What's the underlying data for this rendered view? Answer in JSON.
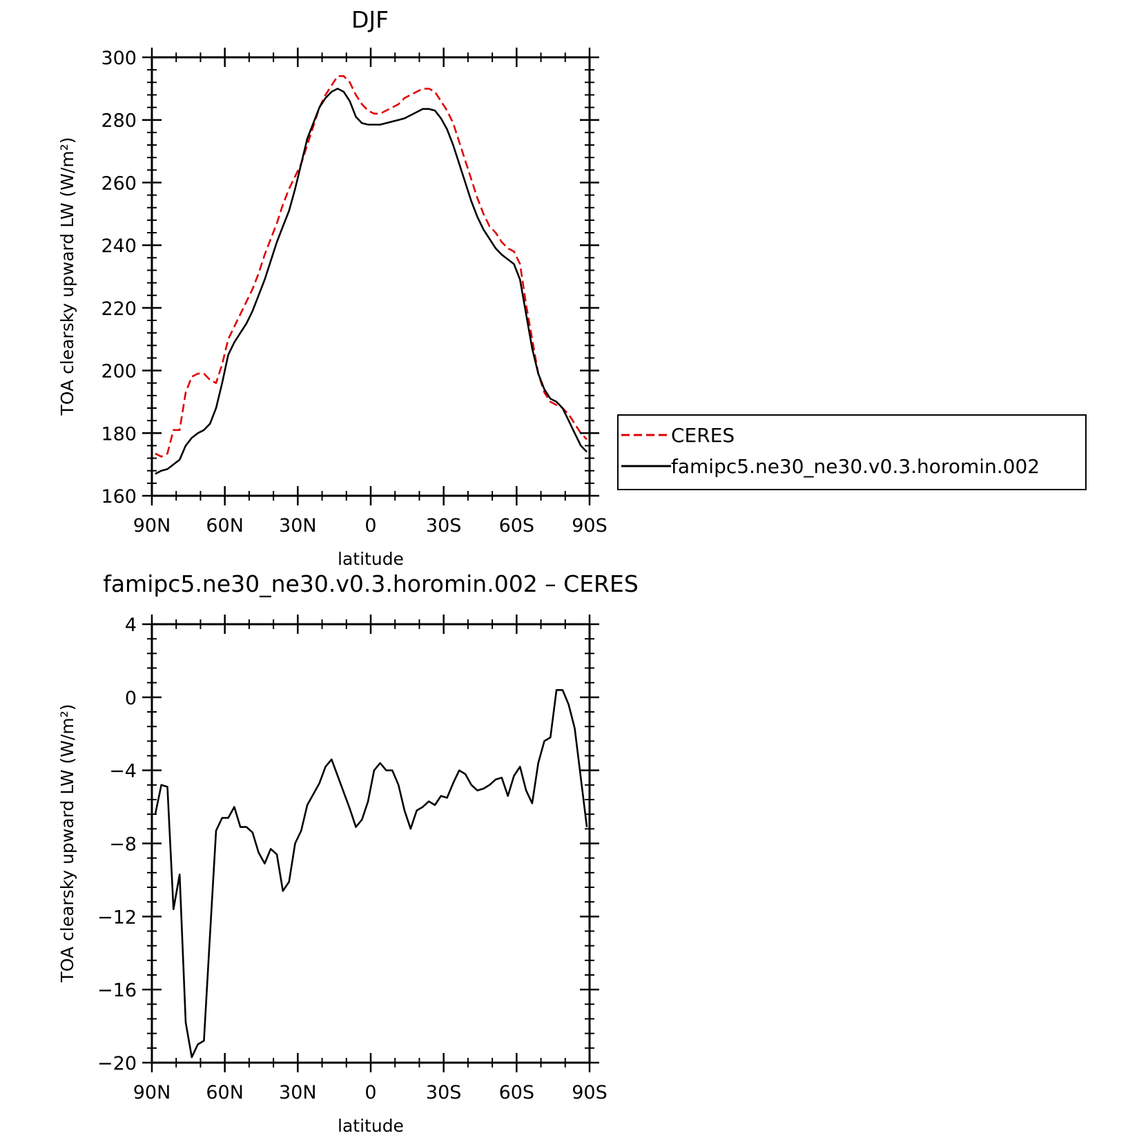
{
  "chart_data": [
    {
      "type": "line",
      "title": "DJF",
      "xlabel": "latitude",
      "ylabel": "TOA clearsky upward LW (W/m²)",
      "xlim": [
        90,
        -90
      ],
      "ylim": [
        160,
        300
      ],
      "xticks": [
        90,
        60,
        30,
        0,
        -30,
        -60,
        -90
      ],
      "xtick_labels": [
        "90N",
        "60N",
        "30N",
        "0",
        "30S",
        "60S",
        "90S"
      ],
      "yticks": [
        160,
        180,
        200,
        220,
        240,
        260,
        280,
        300
      ],
      "ytick_labels": [
        "160",
        "180",
        "200",
        "220",
        "240",
        "260",
        "280",
        "300"
      ],
      "legend_position": "right",
      "series": [
        {
          "name": "CERES",
          "color": "#e00000",
          "dash": "dashed",
          "x": [
            88.6,
            86.1,
            83.6,
            81.1,
            78.6,
            76.1,
            73.6,
            71.1,
            68.6,
            66.1,
            63.6,
            61.1,
            58.6,
            56.1,
            53.6,
            51.1,
            48.6,
            46.1,
            43.6,
            41.1,
            38.6,
            36.1,
            33.6,
            31.1,
            28.6,
            26.1,
            23.6,
            21.1,
            18.6,
            16.1,
            13.6,
            11.1,
            8.6,
            6.1,
            3.6,
            1.1,
            -1.4,
            -3.9,
            -6.4,
            -8.9,
            -11.4,
            -13.9,
            -16.4,
            -18.9,
            -21.4,
            -23.9,
            -26.4,
            -28.9,
            -31.4,
            -33.9,
            -36.4,
            -38.9,
            -41.4,
            -43.9,
            -46.4,
            -48.9,
            -51.4,
            -53.9,
            -56.4,
            -58.9,
            -61.4,
            -63.9,
            -66.4,
            -68.9,
            -71.4,
            -73.9,
            -76.4,
            -78.9,
            -81.4,
            -83.9,
            -86.4,
            -88.9
          ],
          "y": [
            173.5,
            172.5,
            173.5,
            181,
            181,
            193,
            198,
            199,
            199,
            197,
            196,
            202,
            210,
            214,
            218,
            222,
            226,
            231,
            237,
            242,
            247,
            253,
            258,
            262,
            266,
            272,
            278,
            284,
            288,
            291,
            294,
            294,
            292,
            288,
            285,
            283,
            282,
            282,
            283,
            284,
            285,
            287,
            288,
            289,
            290,
            290,
            289,
            286,
            283,
            279,
            273,
            267,
            261,
            255,
            250,
            246,
            244,
            241,
            239,
            238,
            234,
            221,
            210,
            199,
            193,
            190,
            189,
            188,
            186,
            183,
            180,
            178
          ],
          "y_note": ""
        },
        {
          "name": "famipc5.ne30_ne30.v0.3.horomin.002",
          "color": "#000000",
          "dash": "solid",
          "x": [
            88.6,
            86.1,
            83.6,
            81.1,
            78.6,
            76.1,
            73.6,
            71.1,
            68.6,
            66.1,
            63.6,
            61.1,
            58.6,
            56.1,
            53.6,
            51.1,
            48.6,
            46.1,
            43.6,
            41.1,
            38.6,
            36.1,
            33.6,
            31.1,
            28.6,
            26.1,
            23.6,
            21.1,
            18.6,
            16.1,
            13.6,
            11.1,
            8.6,
            6.1,
            3.6,
            1.1,
            -1.4,
            -3.9,
            -6.4,
            -8.9,
            -11.4,
            -13.9,
            -16.4,
            -18.9,
            -21.4,
            -23.9,
            -26.4,
            -28.9,
            -31.4,
            -33.9,
            -36.4,
            -38.9,
            -41.4,
            -43.9,
            -46.4,
            -48.9,
            -51.4,
            -53.9,
            -56.4,
            -58.9,
            -61.4,
            -63.9,
            -66.4,
            -68.9,
            -71.4,
            -73.9,
            -76.4,
            -78.9,
            -81.4,
            -83.9,
            -86.4,
            -88.9
          ],
          "y": [
            167,
            168,
            168.5,
            170,
            171.5,
            176,
            178.5,
            180,
            181,
            183,
            188,
            196,
            205,
            209,
            212,
            215,
            219,
            224,
            229,
            235,
            241,
            246,
            251,
            258,
            266,
            274,
            279,
            284,
            287,
            289,
            290,
            289,
            286,
            281,
            279,
            278.5,
            278.5,
            278.5,
            279,
            279.5,
            280,
            280.5,
            281.5,
            282.5,
            283.5,
            283.5,
            283,
            280.5,
            277,
            272,
            266,
            260,
            254,
            249,
            245,
            242,
            239,
            237,
            235.5,
            234,
            229,
            218,
            207,
            199,
            194,
            191,
            190,
            188,
            184,
            180,
            176,
            174
          ]
        }
      ]
    },
    {
      "type": "line",
      "title": "famipc5.ne30_ne30.v0.3.horomin.002 – CERES",
      "xlabel": "latitude",
      "ylabel": "TOA clearsky upward LW (W/m²)",
      "xlim": [
        90,
        -90
      ],
      "ylim": [
        -20,
        4
      ],
      "xticks": [
        90,
        60,
        30,
        0,
        -30,
        -60,
        -90
      ],
      "xtick_labels": [
        "90N",
        "60N",
        "30N",
        "0",
        "30S",
        "60S",
        "90S"
      ],
      "yticks": [
        -20,
        -16,
        -12,
        -8,
        -4,
        0,
        4
      ],
      "ytick_labels": [
        "−20",
        "−16",
        "−12",
        "−8",
        "−4",
        "0",
        "4"
      ],
      "series": [
        {
          "color": "#000000",
          "dash": "solid",
          "x": [
            88.6,
            86.1,
            83.6,
            81.1,
            78.6,
            76.1,
            73.6,
            71.1,
            68.6,
            66.1,
            63.6,
            61.1,
            58.6,
            56.1,
            53.6,
            51.1,
            48.6,
            46.1,
            43.6,
            41.1,
            38.6,
            36.1,
            33.6,
            31.1,
            28.6,
            26.1,
            23.6,
            21.1,
            18.6,
            16.1,
            13.6,
            11.1,
            8.6,
            6.1,
            3.6,
            1.1,
            -1.4,
            -3.9,
            -6.4,
            -8.9,
            -11.4,
            -13.9,
            -16.4,
            -18.9,
            -21.4,
            -23.9,
            -26.4,
            -28.9,
            -31.4,
            -33.9,
            -36.4,
            -38.9,
            -41.4,
            -43.9,
            -46.4,
            -48.9,
            -51.4,
            -53.9,
            -56.4,
            -58.9,
            -61.4,
            -63.9,
            -66.4,
            -68.9,
            -71.4,
            -73.9,
            -76.4,
            -78.9,
            -81.4,
            -83.9,
            -86.4,
            -88.9
          ],
          "y": [
            -6.4,
            -4.8,
            -4.9,
            -11.6,
            -9.7,
            -17.8,
            -19.7,
            -19.0,
            -18.8,
            -13.0,
            -7.3,
            -6.6,
            -6.6,
            -6.0,
            -7.1,
            -7.1,
            -7.4,
            -8.5,
            -9.1,
            -8.3,
            -8.6,
            -10.6,
            -10.1,
            -8.0,
            -7.3,
            -5.9,
            -5.3,
            -4.7,
            -3.8,
            -3.4,
            -4.3,
            -5.2,
            -6.1,
            -7.1,
            -6.7,
            -5.7,
            -4.0,
            -3.6,
            -4.0,
            -4.0,
            -4.8,
            -6.2,
            -7.2,
            -6.2,
            -6.0,
            -5.7,
            -5.9,
            -5.4,
            -5.5,
            -4.7,
            -4.0,
            -4.2,
            -4.8,
            -5.1,
            -5.0,
            -4.8,
            -4.5,
            -4.4,
            -5.4,
            -4.3,
            -3.8,
            -5.1,
            -5.8,
            -3.6,
            -2.4,
            -2.2,
            0.4,
            0.4,
            -0.4,
            -1.7,
            -4.4,
            -7.1
          ]
        }
      ]
    }
  ]
}
